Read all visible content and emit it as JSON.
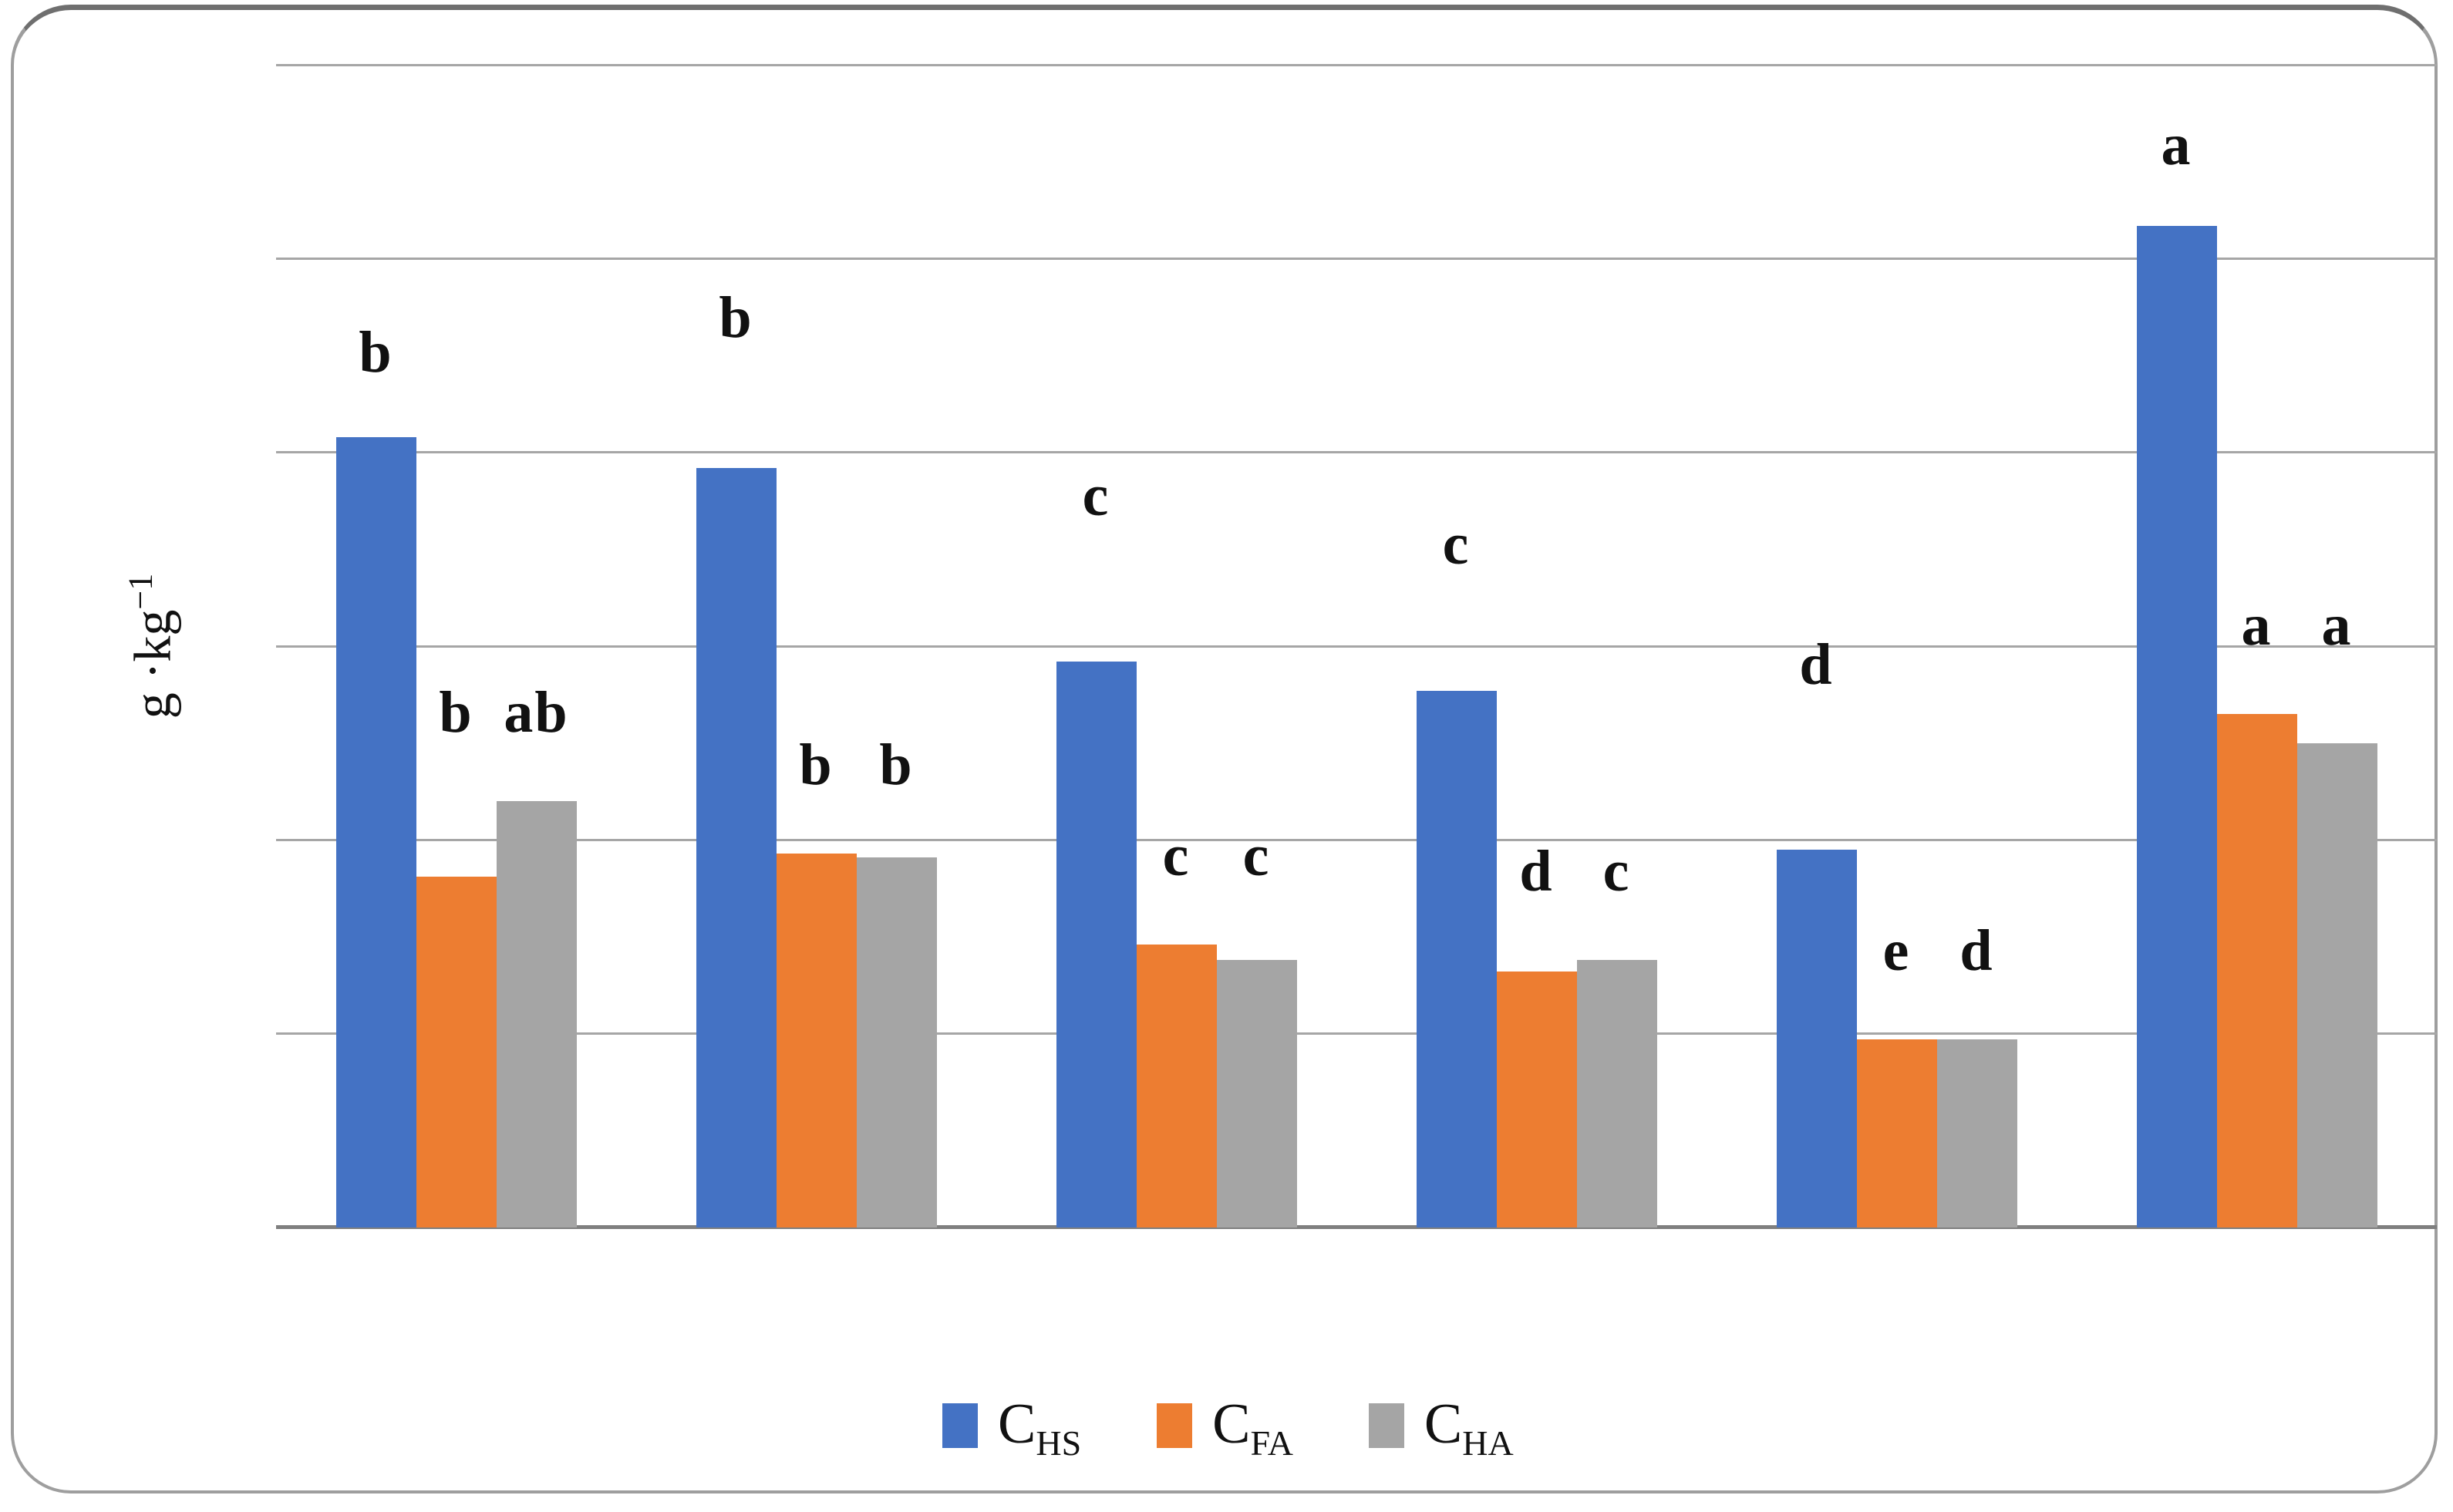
{
  "y_axis": {
    "base": "g ·kg",
    "sup": "−1"
  },
  "legend": {
    "items": [
      {
        "main": "C",
        "sub": "HS",
        "color": "#4472C4"
      },
      {
        "main": "C",
        "sub": "FA",
        "color": "#ED7D31"
      },
      {
        "main": "C",
        "sub": "HA",
        "color": "#A5A5A5"
      }
    ]
  },
  "chart_data": {
    "type": "bar",
    "title": "",
    "xlabel": "",
    "ylabel": "g ·kg⁻¹",
    "categories": [
      "",
      "",
      "",
      "",
      "",
      ""
    ],
    "series": [
      {
        "name": "C_HS",
        "color": "#4472C4",
        "values": [
          4.08,
          3.92,
          2.92,
          2.77,
          1.95,
          5.17
        ],
        "letters": [
          "b",
          "b",
          "c",
          "c",
          "d",
          "a"
        ]
      },
      {
        "name": "C_FA",
        "color": "#ED7D31",
        "values": [
          1.81,
          1.93,
          1.46,
          1.32,
          0.97,
          2.65
        ],
        "letters": [
          "b",
          "b",
          "c",
          "d",
          "e",
          "a"
        ]
      },
      {
        "name": "C_HA",
        "color": "#A5A5A5",
        "values": [
          2.2,
          1.91,
          1.38,
          1.38,
          0.97,
          2.5
        ],
        "letters": [
          "ab",
          "b",
          "c",
          "c",
          "d",
          "a"
        ]
      }
    ],
    "ylim": [
      0,
      6
    ],
    "gridline_interval": 1,
    "grid": true,
    "y_tick_labels_visible": false,
    "x_tick_labels_visible": false,
    "legend_position": "bottom",
    "layout_hints": {
      "hs_letter_dy": [
        110,
        195,
        215,
        190,
        240,
        105
      ],
      "pair_letter_dy": 115,
      "gridline_color": "#a6a6a6",
      "axis_color": "#7f7f7f"
    }
  }
}
